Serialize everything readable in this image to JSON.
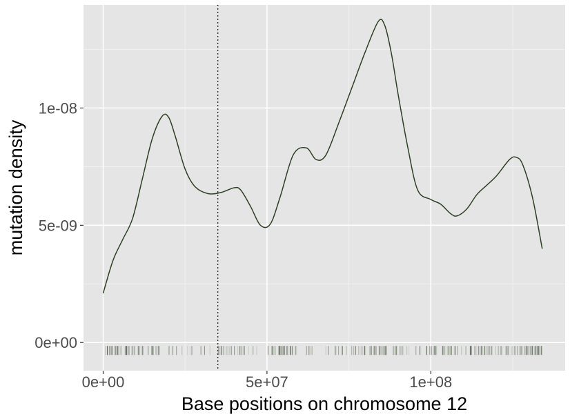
{
  "chart_data": {
    "type": "line",
    "title": "",
    "xlabel": "Base positions on chromosome 12",
    "ylabel": "mutation density",
    "xlim": [
      -6000000,
      141000000
    ],
    "ylim": [
      -1.2e-09,
      1.44e-08
    ],
    "x_ticks": [
      {
        "value": 0,
        "label": "0e+00"
      },
      {
        "value": 50000000,
        "label": "5e+07"
      },
      {
        "value": 100000000,
        "label": "1e+08"
      }
    ],
    "y_ticks": [
      {
        "value": 0,
        "label": "0e+00"
      },
      {
        "value": 5e-09,
        "label": "5e-09"
      },
      {
        "value": 1e-08,
        "label": "1e-08"
      }
    ],
    "x_minor": [
      25000000,
      75000000,
      125000000
    ],
    "y_minor": [
      2.5e-09,
      7.5e-09,
      1.25e-08
    ],
    "grid": true,
    "panel_background": "#e5e5e5",
    "line_color": "#2d3f24",
    "rug_color": "#2d3f24",
    "reference_line": {
      "x": 35000000,
      "style": "dotted"
    },
    "density_curve": {
      "x": [
        0,
        3000000,
        6000000,
        9000000,
        12000000,
        15000000,
        18000000,
        20000000,
        22000000,
        25000000,
        28000000,
        32000000,
        36000000,
        40000000,
        42000000,
        45000000,
        48000000,
        51000000,
        54000000,
        58000000,
        62000000,
        65000000,
        68000000,
        72000000,
        76000000,
        80000000,
        84000000,
        86000000,
        88000000,
        90000000,
        93000000,
        96000000,
        100000000,
        103000000,
        106000000,
        108000000,
        111000000,
        114000000,
        117000000,
        120000000,
        124000000,
        126000000,
        128000000,
        131000000,
        134000000
      ],
      "y": [
        2.1e-09,
        3.5e-09,
        4.4e-09,
        5.3e-09,
        7e-09,
        8.7e-09,
        9.65e-09,
        9.6e-09,
        8.8e-09,
        7.4e-09,
        6.65e-09,
        6.35e-09,
        6.4e-09,
        6.6e-09,
        6.5e-09,
        5.8e-09,
        5e-09,
        5.05e-09,
        6.2e-09,
        8e-09,
        8.3e-09,
        7.8e-09,
        8e-09,
        9.4e-09,
        1.09e-08,
        1.24e-08,
        1.37e-08,
        1.35e-08,
        1.23e-08,
        1.06e-08,
        8.3e-09,
        6.5e-09,
        6.1e-09,
        5.9e-09,
        5.5e-09,
        5.4e-09,
        5.7e-09,
        6.3e-09,
        6.7e-09,
        7.1e-09,
        7.8e-09,
        7.9e-09,
        7.6e-09,
        6.2e-09,
        4e-09
      ]
    },
    "rug": {
      "clusters": [
        {
          "from": 0,
          "to": 16000000,
          "count": 45
        },
        {
          "from": 16000000,
          "to": 25000000,
          "count": 9
        },
        {
          "from": 25000000,
          "to": 34000000,
          "count": 6
        },
        {
          "from": 35000000,
          "to": 50000000,
          "count": 22
        },
        {
          "from": 50000000,
          "to": 58000000,
          "count": 26
        },
        {
          "from": 58000000,
          "to": 70000000,
          "count": 12
        },
        {
          "from": 70000000,
          "to": 78000000,
          "count": 10
        },
        {
          "from": 78000000,
          "to": 92000000,
          "count": 34
        },
        {
          "from": 92000000,
          "to": 100000000,
          "count": 8
        },
        {
          "from": 100000000,
          "to": 112000000,
          "count": 26
        },
        {
          "from": 112000000,
          "to": 127000000,
          "count": 38
        },
        {
          "from": 127000000,
          "to": 134000000,
          "count": 30
        }
      ]
    }
  }
}
